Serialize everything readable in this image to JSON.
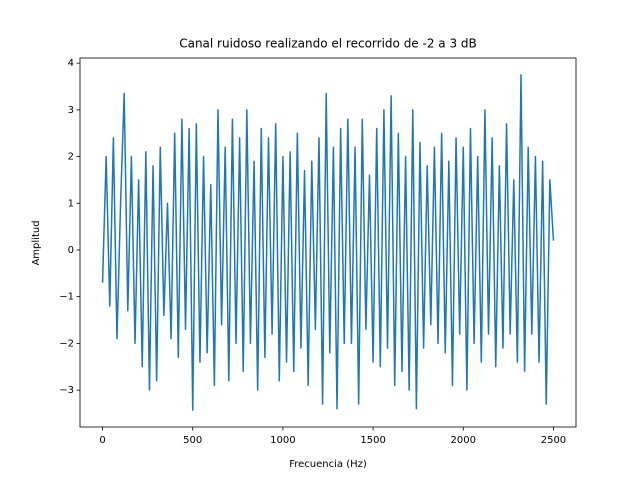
{
  "chart_data": {
    "type": "line",
    "title": "Canal ruidoso realizando el recorrido de -2 a 3 dB",
    "xlabel": "Frecuencia (Hz)",
    "ylabel": "Amplitud",
    "xlim": [
      -125,
      2625
    ],
    "ylim": [
      -3.79,
      4.11
    ],
    "xticks": [
      0,
      500,
      1000,
      1500,
      2000,
      2500
    ],
    "yticks": [
      {
        "value": -3,
        "label": "−3"
      },
      {
        "value": -2,
        "label": "−2"
      },
      {
        "value": -1,
        "label": "−1"
      },
      0,
      1,
      2,
      3,
      4
    ],
    "grid": false,
    "series": [
      {
        "color": "#1f77b4",
        "x": [
          0,
          20,
          40,
          60,
          80,
          100,
          120,
          140,
          160,
          180,
          200,
          220,
          240,
          260,
          280,
          300,
          320,
          340,
          360,
          380,
          400,
          420,
          440,
          460,
          480,
          500,
          520,
          540,
          560,
          580,
          600,
          620,
          640,
          660,
          680,
          700,
          720,
          740,
          760,
          780,
          800,
          820,
          840,
          860,
          880,
          900,
          920,
          940,
          960,
          980,
          1000,
          1020,
          1040,
          1060,
          1080,
          1100,
          1120,
          1140,
          1160,
          1180,
          1200,
          1220,
          1240,
          1260,
          1280,
          1300,
          1320,
          1340,
          1360,
          1380,
          1400,
          1420,
          1440,
          1460,
          1480,
          1500,
          1520,
          1540,
          1560,
          1580,
          1600,
          1620,
          1640,
          1660,
          1680,
          1700,
          1720,
          1740,
          1760,
          1780,
          1800,
          1820,
          1840,
          1860,
          1880,
          1900,
          1920,
          1940,
          1960,
          1980,
          2000,
          2020,
          2040,
          2060,
          2080,
          2100,
          2120,
          2140,
          2160,
          2180,
          2200,
          2220,
          2240,
          2260,
          2280,
          2300,
          2320,
          2340,
          2360,
          2380,
          2400,
          2420,
          2440,
          2460,
          2480,
          2500
        ],
        "values": [
          -0.7,
          2.0,
          -1.2,
          2.4,
          -1.9,
          1.0,
          3.35,
          -1.3,
          2.0,
          -2.0,
          1.5,
          -2.5,
          2.1,
          -3.0,
          1.8,
          -2.8,
          2.2,
          -1.4,
          1.0,
          -1.9,
          2.5,
          -2.3,
          2.8,
          -1.7,
          2.6,
          -3.43,
          2.7,
          -2.4,
          2.0,
          -2.2,
          1.4,
          -2.9,
          3.0,
          -1.6,
          2.2,
          -2.8,
          2.8,
          -2.0,
          2.4,
          -2.6,
          3.0,
          -2.0,
          1.9,
          -3.0,
          2.6,
          -2.3,
          2.4,
          -1.8,
          2.7,
          -2.8,
          2.0,
          -2.4,
          2.1,
          -2.6,
          2.5,
          -2.1,
          1.7,
          -2.9,
          1.9,
          -1.7,
          2.4,
          -3.3,
          3.35,
          -2.2,
          2.2,
          -3.4,
          2.6,
          -2.0,
          2.8,
          -2.0,
          2.2,
          -3.3,
          2.8,
          -1.7,
          1.6,
          -2.4,
          2.6,
          -2.5,
          3.0,
          -2.1,
          3.3,
          -2.9,
          2.5,
          -2.6,
          2.0,
          -3.0,
          3.0,
          -3.4,
          2.3,
          -2.1,
          1.8,
          -1.6,
          2.2,
          -2.0,
          2.5,
          -2.2,
          1.9,
          -2.9,
          2.4,
          -1.8,
          2.2,
          -3.0,
          2.6,
          -2.0,
          2.0,
          -2.4,
          3.0,
          -1.8,
          2.4,
          -2.5,
          1.8,
          -2.1,
          2.7,
          -1.8,
          1.5,
          -2.4,
          3.75,
          -2.6,
          2.2,
          -1.8,
          2.0,
          -2.4,
          1.9,
          -3.3,
          1.5,
          0.2
        ]
      }
    ]
  }
}
